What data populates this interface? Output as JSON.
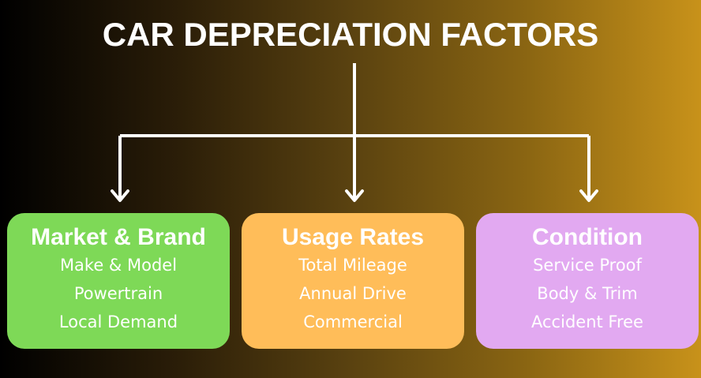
{
  "title": "CAR DEPRECIATION FACTORS",
  "nodes": [
    {
      "label": "Market & Brand",
      "items": [
        "Make & Model",
        "Powertrain",
        "Local Demand"
      ]
    },
    {
      "label": "Usage Rates",
      "items": [
        "Total Mileage",
        "Annual Drive",
        "Commercial"
      ]
    },
    {
      "label": "Condition",
      "items": [
        "Service Proof",
        "Body & Trim",
        "Accident Free"
      ]
    }
  ]
}
